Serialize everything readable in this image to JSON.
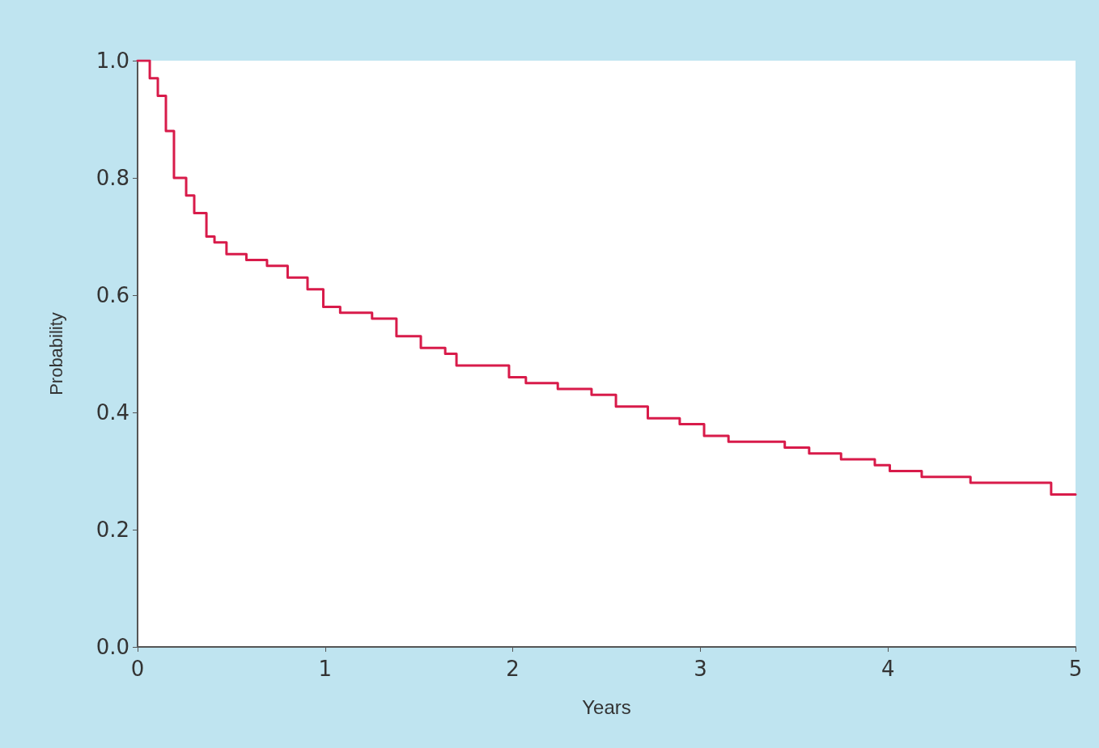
{
  "chart_data": {
    "type": "step",
    "xlabel": "Years",
    "ylabel": "Probability",
    "x": [
      0,
      0.065,
      0.108,
      0.151,
      0.194,
      0.259,
      0.302,
      0.367,
      0.41,
      0.474,
      0.58,
      0.69,
      0.8,
      0.906,
      0.99,
      1.08,
      1.25,
      1.38,
      1.51,
      1.64,
      1.7,
      1.83,
      1.98,
      2.07,
      2.24,
      2.42,
      2.55,
      2.72,
      2.89,
      3.02,
      3.15,
      3.45,
      3.58,
      3.75,
      3.93,
      4.01,
      4.18,
      4.44,
      4.7,
      4.87,
      5
    ],
    "series": [
      {
        "color": "#d81b4a",
        "values": [
          1,
          0.97,
          0.94,
          0.88,
          0.8,
          0.77,
          0.74,
          0.7,
          0.69,
          0.67,
          0.66,
          0.65,
          0.63,
          0.61,
          0.58,
          0.57,
          0.56,
          0.53,
          0.51,
          0.5,
          0.48,
          0.48,
          0.46,
          0.45,
          0.44,
          0.43,
          0.41,
          0.39,
          0.38,
          0.36,
          0.35,
          0.34,
          0.33,
          0.32,
          0.31,
          0.3,
          0.29,
          0.28,
          0.28,
          0.26,
          0.26
        ]
      }
    ],
    "xlim": [
      0,
      5
    ],
    "xticks": [
      0,
      1,
      2,
      3,
      4,
      5
    ],
    "ylim": [
      0,
      1
    ],
    "yticks": [
      {
        "value": 0,
        "label": "0.0"
      },
      {
        "value": 0.2,
        "label": "0.2"
      },
      {
        "value": 0.4,
        "label": "0.4"
      },
      {
        "value": 0.6,
        "label": "0.6"
      },
      {
        "value": 0.8,
        "label": "0.8"
      },
      {
        "value": 1,
        "label": "1.0"
      }
    ],
    "grid": false,
    "marker": "none",
    "line_style": "solid"
  }
}
